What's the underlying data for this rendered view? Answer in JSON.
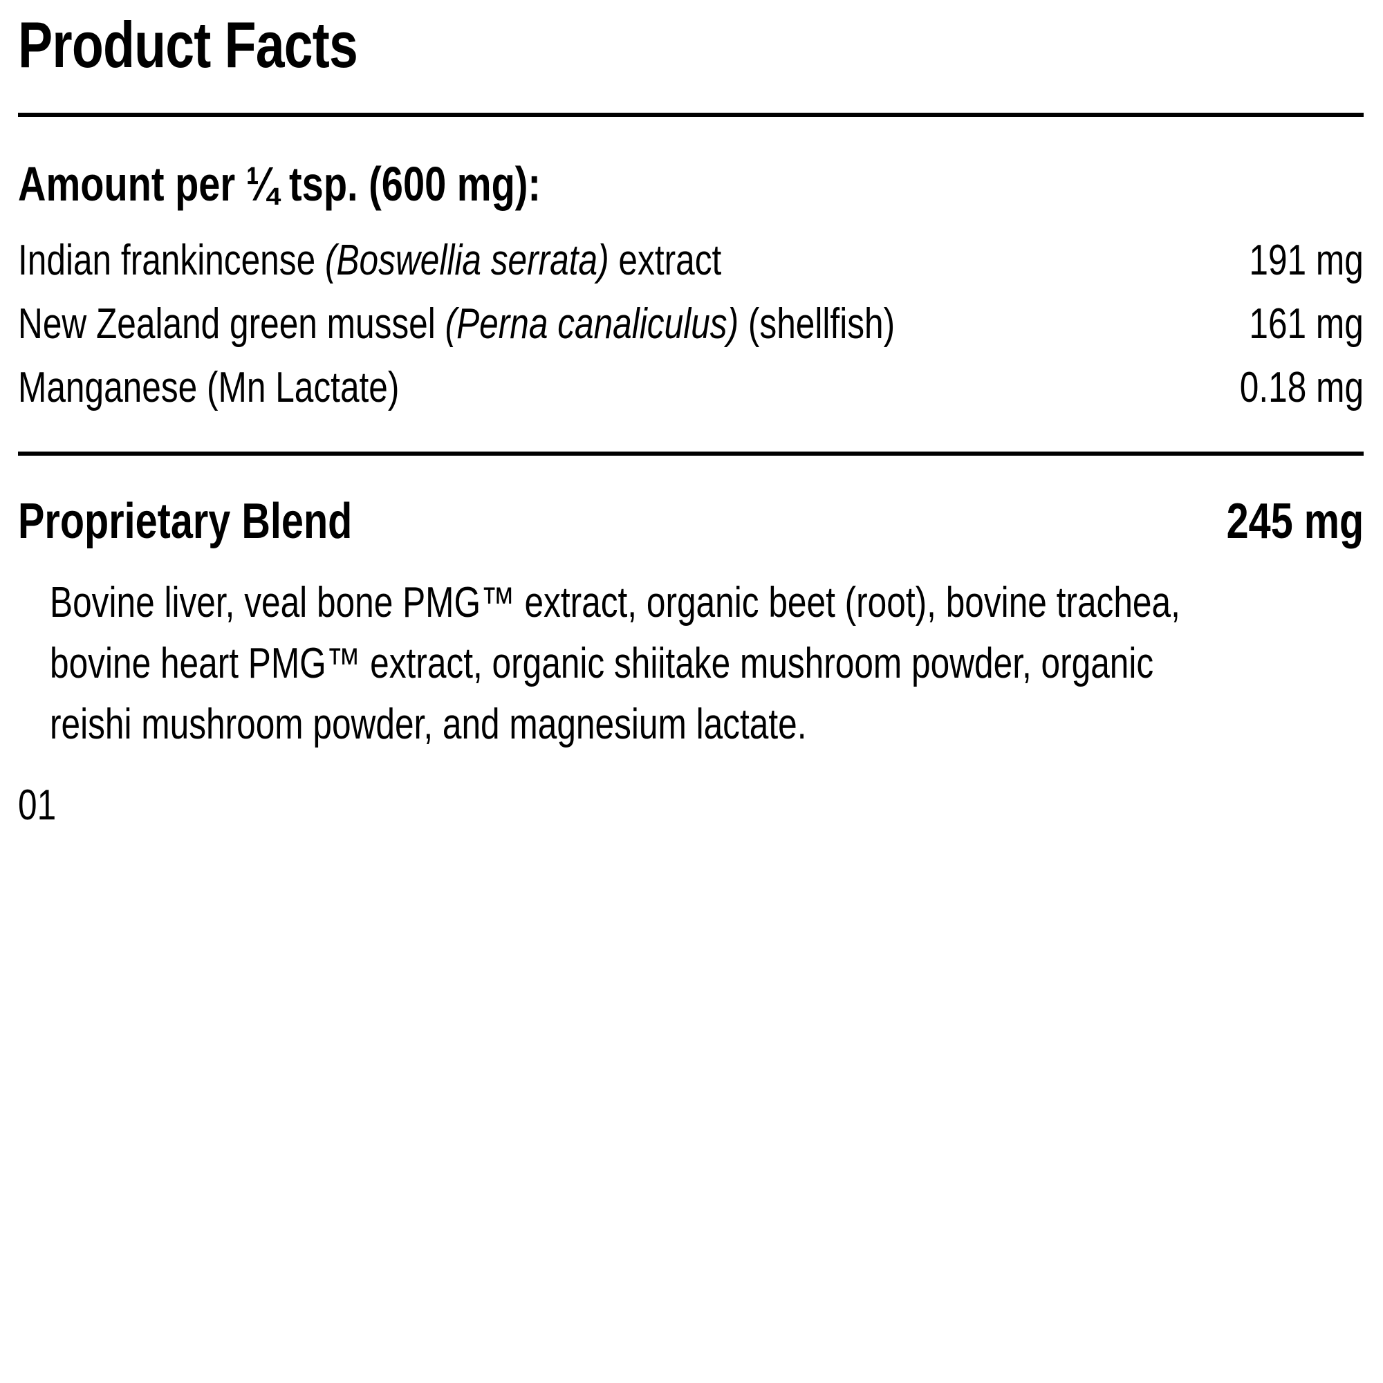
{
  "page": {
    "title": "Product Facts",
    "footer_code": "01"
  },
  "serving": {
    "heading": "Amount per ¼ tsp. (600 mg):",
    "rows": [
      {
        "parts": [
          {
            "text": "Indian frankincense ",
            "italic": false
          },
          {
            "text": "(Boswellia serrata)",
            "italic": true
          },
          {
            "text": " extract",
            "italic": false
          }
        ],
        "amount": "191 mg"
      },
      {
        "parts": [
          {
            "text": "New Zealand green mussel ",
            "italic": false
          },
          {
            "text": "(Perna canaliculus)",
            "italic": true
          },
          {
            "text": " (shellfish)",
            "italic": false
          }
        ],
        "amount": "161 mg"
      },
      {
        "parts": [
          {
            "text": "Manganese (Mn Lactate)",
            "italic": false
          }
        ],
        "amount": "0.18 mg"
      }
    ]
  },
  "proprietary_blend": {
    "label": "Proprietary Blend",
    "amount": "245 mg",
    "description_lines": [
      "Bovine liver, veal bone PMG™ extract, organic beet (root), bovine trachea,",
      "bovine heart PMG™ extract, organic shiitake mushroom powder, organic",
      "reishi mushroom powder, and magnesium lactate."
    ]
  },
  "colors": {
    "text": "#000000",
    "background": "#ffffff",
    "rule": "#000000"
  }
}
